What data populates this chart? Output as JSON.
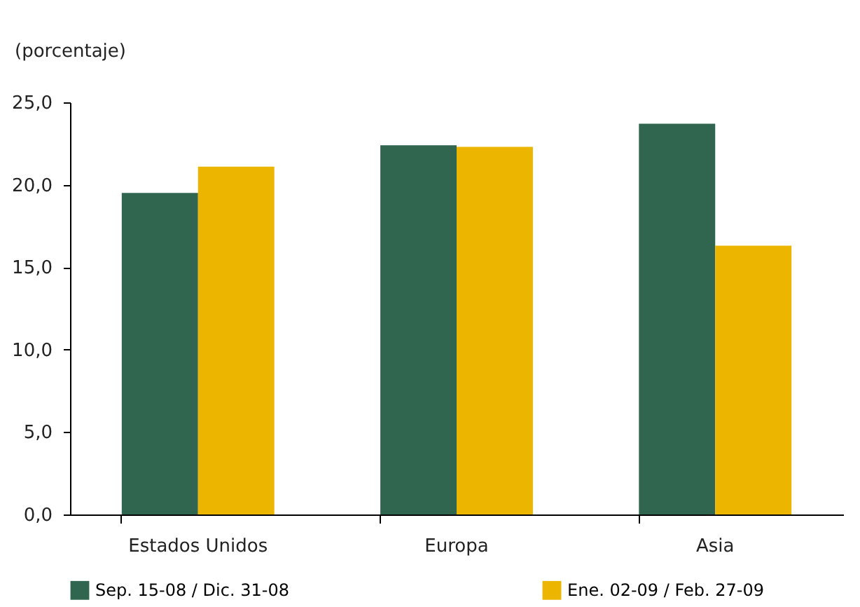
{
  "chart_data": {
    "type": "bar",
    "ylabel": "(porcentaje)",
    "categories": [
      "Estados Unidos",
      "Europa",
      "Asia"
    ],
    "series": [
      {
        "name": "Sep. 15-08 / Dic. 31-08",
        "color": "#306650",
        "values": [
          19.5,
          22.4,
          23.7
        ]
      },
      {
        "name": "Ene. 02-09 / Feb. 27-09",
        "color": "#ecb500",
        "values": [
          21.1,
          22.3,
          16.3
        ]
      }
    ],
    "ylim": [
      0,
      25
    ],
    "yticks": [
      {
        "value": 0,
        "label": "0,0"
      },
      {
        "value": 5,
        "label": "5,0"
      },
      {
        "value": 10,
        "label": "10,0"
      },
      {
        "value": 15,
        "label": "15,0"
      },
      {
        "value": 20,
        "label": "20,0"
      },
      {
        "value": 25,
        "label": "25,0"
      }
    ],
    "grid": false,
    "legend": "bottom"
  }
}
